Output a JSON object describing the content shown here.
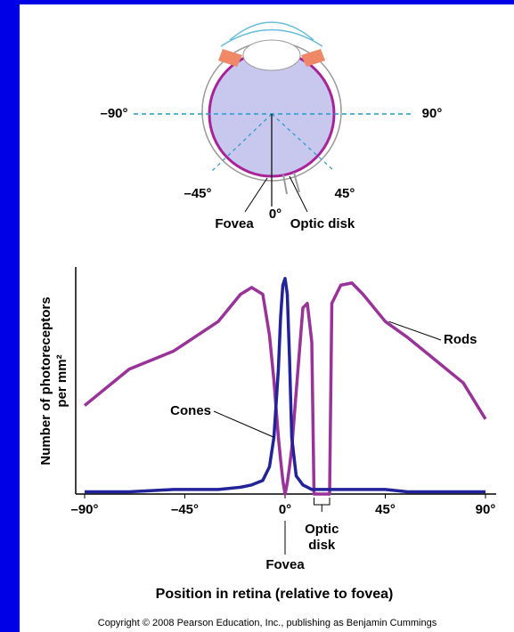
{
  "diagram": {
    "labels": [
      "–90°",
      "90°",
      "–45°",
      "45°",
      "0°",
      "Fovea",
      "Optic disk"
    ]
  },
  "chart_data": {
    "type": "line",
    "xlabel": "Position in retina (relative to fovea)",
    "ylabel": [
      "Number of photoreceptors",
      "per mm²"
    ],
    "x": [
      -90,
      -70,
      -50,
      -30,
      -20,
      -15,
      -10,
      -7,
      -5,
      -3,
      -2,
      -1,
      0,
      1,
      2,
      3,
      5,
      8,
      10,
      12,
      13,
      20,
      21,
      25,
      30,
      35,
      45,
      55,
      70,
      80,
      90
    ],
    "series": [
      {
        "name": "Rods",
        "color": "#993399",
        "values": [
          39,
          55,
          63,
          76,
          88,
          91,
          88,
          70,
          50,
          25,
          15,
          6,
          0,
          5,
          12,
          20,
          45,
          82,
          84,
          67,
          0,
          0,
          84,
          92,
          93,
          88,
          76,
          69,
          57,
          49,
          33
        ]
      },
      {
        "name": "Cones",
        "color": "#22229a",
        "values": [
          1,
          1,
          2,
          2,
          3,
          4,
          6,
          12,
          25,
          55,
          78,
          92,
          95,
          88,
          60,
          25,
          8,
          4,
          3,
          2,
          2,
          2,
          2,
          2,
          2,
          2,
          2,
          1,
          1,
          1,
          1
        ]
      }
    ],
    "xlim": [
      -90,
      90
    ],
    "xticks": [
      {
        "value": -90,
        "label": "–90°"
      },
      {
        "value": -45,
        "label": "–45°"
      },
      {
        "value": 0,
        "label": "0°"
      },
      {
        "value": 45,
        "label": "45°"
      },
      {
        "value": 90,
        "label": "90°"
      }
    ],
    "ylim": [
      0,
      100
    ],
    "annotations": [
      {
        "label": [
          "Fovea"
        ],
        "x": 0
      },
      {
        "label": [
          "Optic",
          "disk"
        ],
        "x": [
          13,
          20
        ]
      }
    ]
  },
  "copyright": "Copyright © 2008 Pearson Education, Inc., publishing as Benjamin Cummings"
}
